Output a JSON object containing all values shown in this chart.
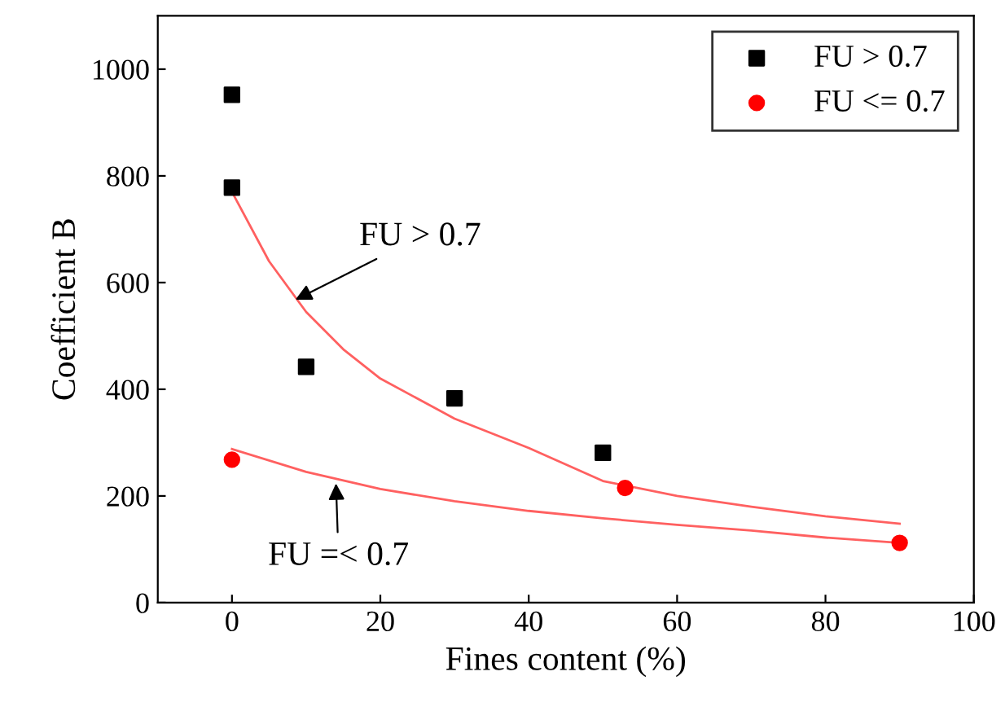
{
  "chart_data": {
    "type": "scatter",
    "xlabel": "Fines content (%)",
    "ylabel": "Coefficient B",
    "xlim": [
      -10,
      100
    ],
    "xticks": [
      0,
      20,
      40,
      60,
      80,
      100
    ],
    "ylim": [
      0,
      1100
    ],
    "yticks": [
      0,
      200,
      400,
      600,
      800,
      1000
    ],
    "grid": false,
    "legend": "top right",
    "series": [
      {
        "name": "FU > 0.7",
        "color": "#000000",
        "marker": "square",
        "x": [
          0,
          0,
          10,
          30,
          50
        ],
        "values": [
          952,
          778,
          442,
          383,
          281
        ]
      },
      {
        "name": "FU <= 0.7",
        "color": "#ff0000",
        "marker": "circle",
        "x": [
          0,
          53,
          90
        ],
        "values": [
          268,
          215,
          112
        ]
      },
      {
        "type": "line",
        "color": "#ff6060",
        "marker": "none",
        "x": [
          0,
          5,
          10,
          15,
          20,
          30,
          40,
          50,
          60,
          70,
          80,
          90
        ],
        "values": [
          770,
          640,
          545,
          475,
          420,
          345,
          290,
          228,
          200,
          180,
          162,
          148
        ]
      },
      {
        "type": "line",
        "color": "#ff6060",
        "marker": "none",
        "x": [
          0,
          10,
          20,
          30,
          40,
          50,
          60,
          70,
          80,
          90
        ],
        "values": [
          288,
          245,
          213,
          190,
          172,
          158,
          146,
          135,
          122,
          112
        ]
      }
    ],
    "annotations": [
      {
        "text": "FU > 0.7",
        "x": 8,
        "y": 564
      },
      {
        "text": "FU =< 0.7",
        "x": 14,
        "y": 232
      }
    ]
  }
}
